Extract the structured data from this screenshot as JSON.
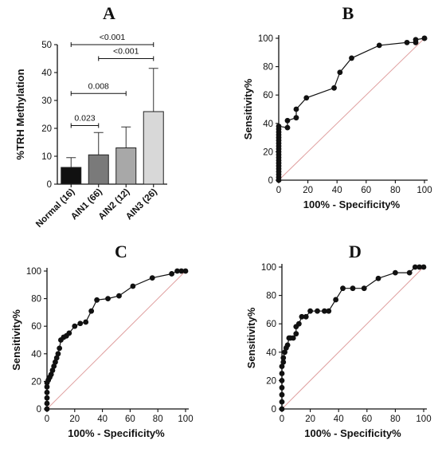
{
  "chart_data": [
    {
      "panel": "A",
      "type": "bar",
      "ylabel": "%TRH Methylation",
      "ylim": [
        0,
        50
      ],
      "yticks": [
        0,
        10,
        20,
        30,
        40,
        50
      ],
      "categories": [
        "Normal (16)",
        "AIN1 (66)",
        "AIN2 (12)",
        "AIN3 (26)"
      ],
      "values": [
        6,
        10.5,
        13,
        26
      ],
      "error_upper": [
        9.5,
        18.5,
        20.5,
        41.5
      ],
      "bar_colors": [
        "#111111",
        "#7a7a7a",
        "#a8a8a8",
        "#d8d8d8"
      ],
      "comparisons": [
        {
          "from": 0,
          "to": 3,
          "y": 50,
          "label": "<0.001"
        },
        {
          "from": 1,
          "to": 3,
          "y": 45,
          "label": "<0.001"
        },
        {
          "from": 0,
          "to": 2,
          "y": 32.5,
          "label": "0.008"
        },
        {
          "from": 0,
          "to": 1,
          "y": 21,
          "label": "0.023"
        }
      ]
    },
    {
      "panel": "B",
      "type": "line",
      "xlabel": "100% - Specificity%",
      "ylabel": "Sensitivity%",
      "xlim": [
        0,
        100
      ],
      "ylim": [
        0,
        100
      ],
      "ticks": [
        0,
        20,
        40,
        60,
        80,
        100
      ],
      "series": [
        {
          "x": [
            0,
            0,
            0,
            0,
            0,
            0,
            0,
            0,
            0,
            0,
            0,
            0,
            0,
            0,
            0,
            0,
            0,
            0,
            0,
            0,
            6,
            6,
            12,
            12,
            19,
            38,
            42,
            50,
            69,
            88,
            94,
            94,
            100,
            100
          ],
          "y": [
            0,
            2,
            4,
            6,
            8,
            10,
            12,
            14,
            16,
            18,
            20,
            22,
            24,
            26,
            28,
            30,
            32,
            34,
            36,
            38,
            37,
            42,
            44,
            50,
            58,
            65,
            76,
            86,
            95,
            97,
            97,
            99,
            100,
            100
          ]
        }
      ],
      "diagonal_color": "#e0a0a0"
    },
    {
      "panel": "C",
      "type": "line",
      "xlabel": "100% - Specificity%",
      "ylabel": "Sensitivity%",
      "xlim": [
        0,
        100
      ],
      "ylim": [
        0,
        100
      ],
      "ticks": [
        0,
        20,
        40,
        60,
        80,
        100
      ],
      "series": [
        {
          "x": [
            0,
            0,
            0,
            0,
            0,
            0,
            1,
            2,
            3,
            4,
            5,
            6,
            7,
            8,
            9,
            10,
            12,
            14,
            16,
            20,
            24,
            28,
            32,
            36,
            44,
            52,
            62,
            76,
            90,
            94,
            97,
            100
          ],
          "y": [
            0,
            4,
            8,
            12,
            16,
            19,
            21,
            23,
            25,
            28,
            31,
            34,
            37,
            40,
            44,
            50,
            52,
            53,
            55,
            60,
            62,
            63,
            71,
            79,
            80,
            82,
            89,
            95,
            98,
            100,
            100,
            100
          ]
        }
      ],
      "diagonal_color": "#e0a0a0"
    },
    {
      "panel": "D",
      "type": "line",
      "xlabel": "100% - Specificity%",
      "ylabel": "Sensitivity%",
      "xlim": [
        0,
        100
      ],
      "ylim": [
        0,
        100
      ],
      "ticks": [
        0,
        20,
        40,
        60,
        80,
        100
      ],
      "series": [
        {
          "x": [
            0,
            0,
            0,
            0,
            0,
            0,
            0,
            1,
            1,
            2,
            3,
            4,
            5,
            6,
            8,
            10,
            10,
            12,
            14,
            17,
            20,
            25,
            30,
            33,
            38,
            43,
            50,
            58,
            68,
            80,
            90,
            94,
            97,
            100
          ],
          "y": [
            0,
            5,
            10,
            15,
            20,
            25,
            30,
            33,
            36,
            40,
            43,
            45,
            50,
            50,
            50,
            53,
            58,
            60,
            65,
            65,
            69,
            69,
            69,
            69,
            77,
            85,
            85,
            85,
            92,
            96,
            96,
            100,
            100,
            100
          ]
        }
      ],
      "diagonal_color": "#e0a0a0"
    }
  ]
}
